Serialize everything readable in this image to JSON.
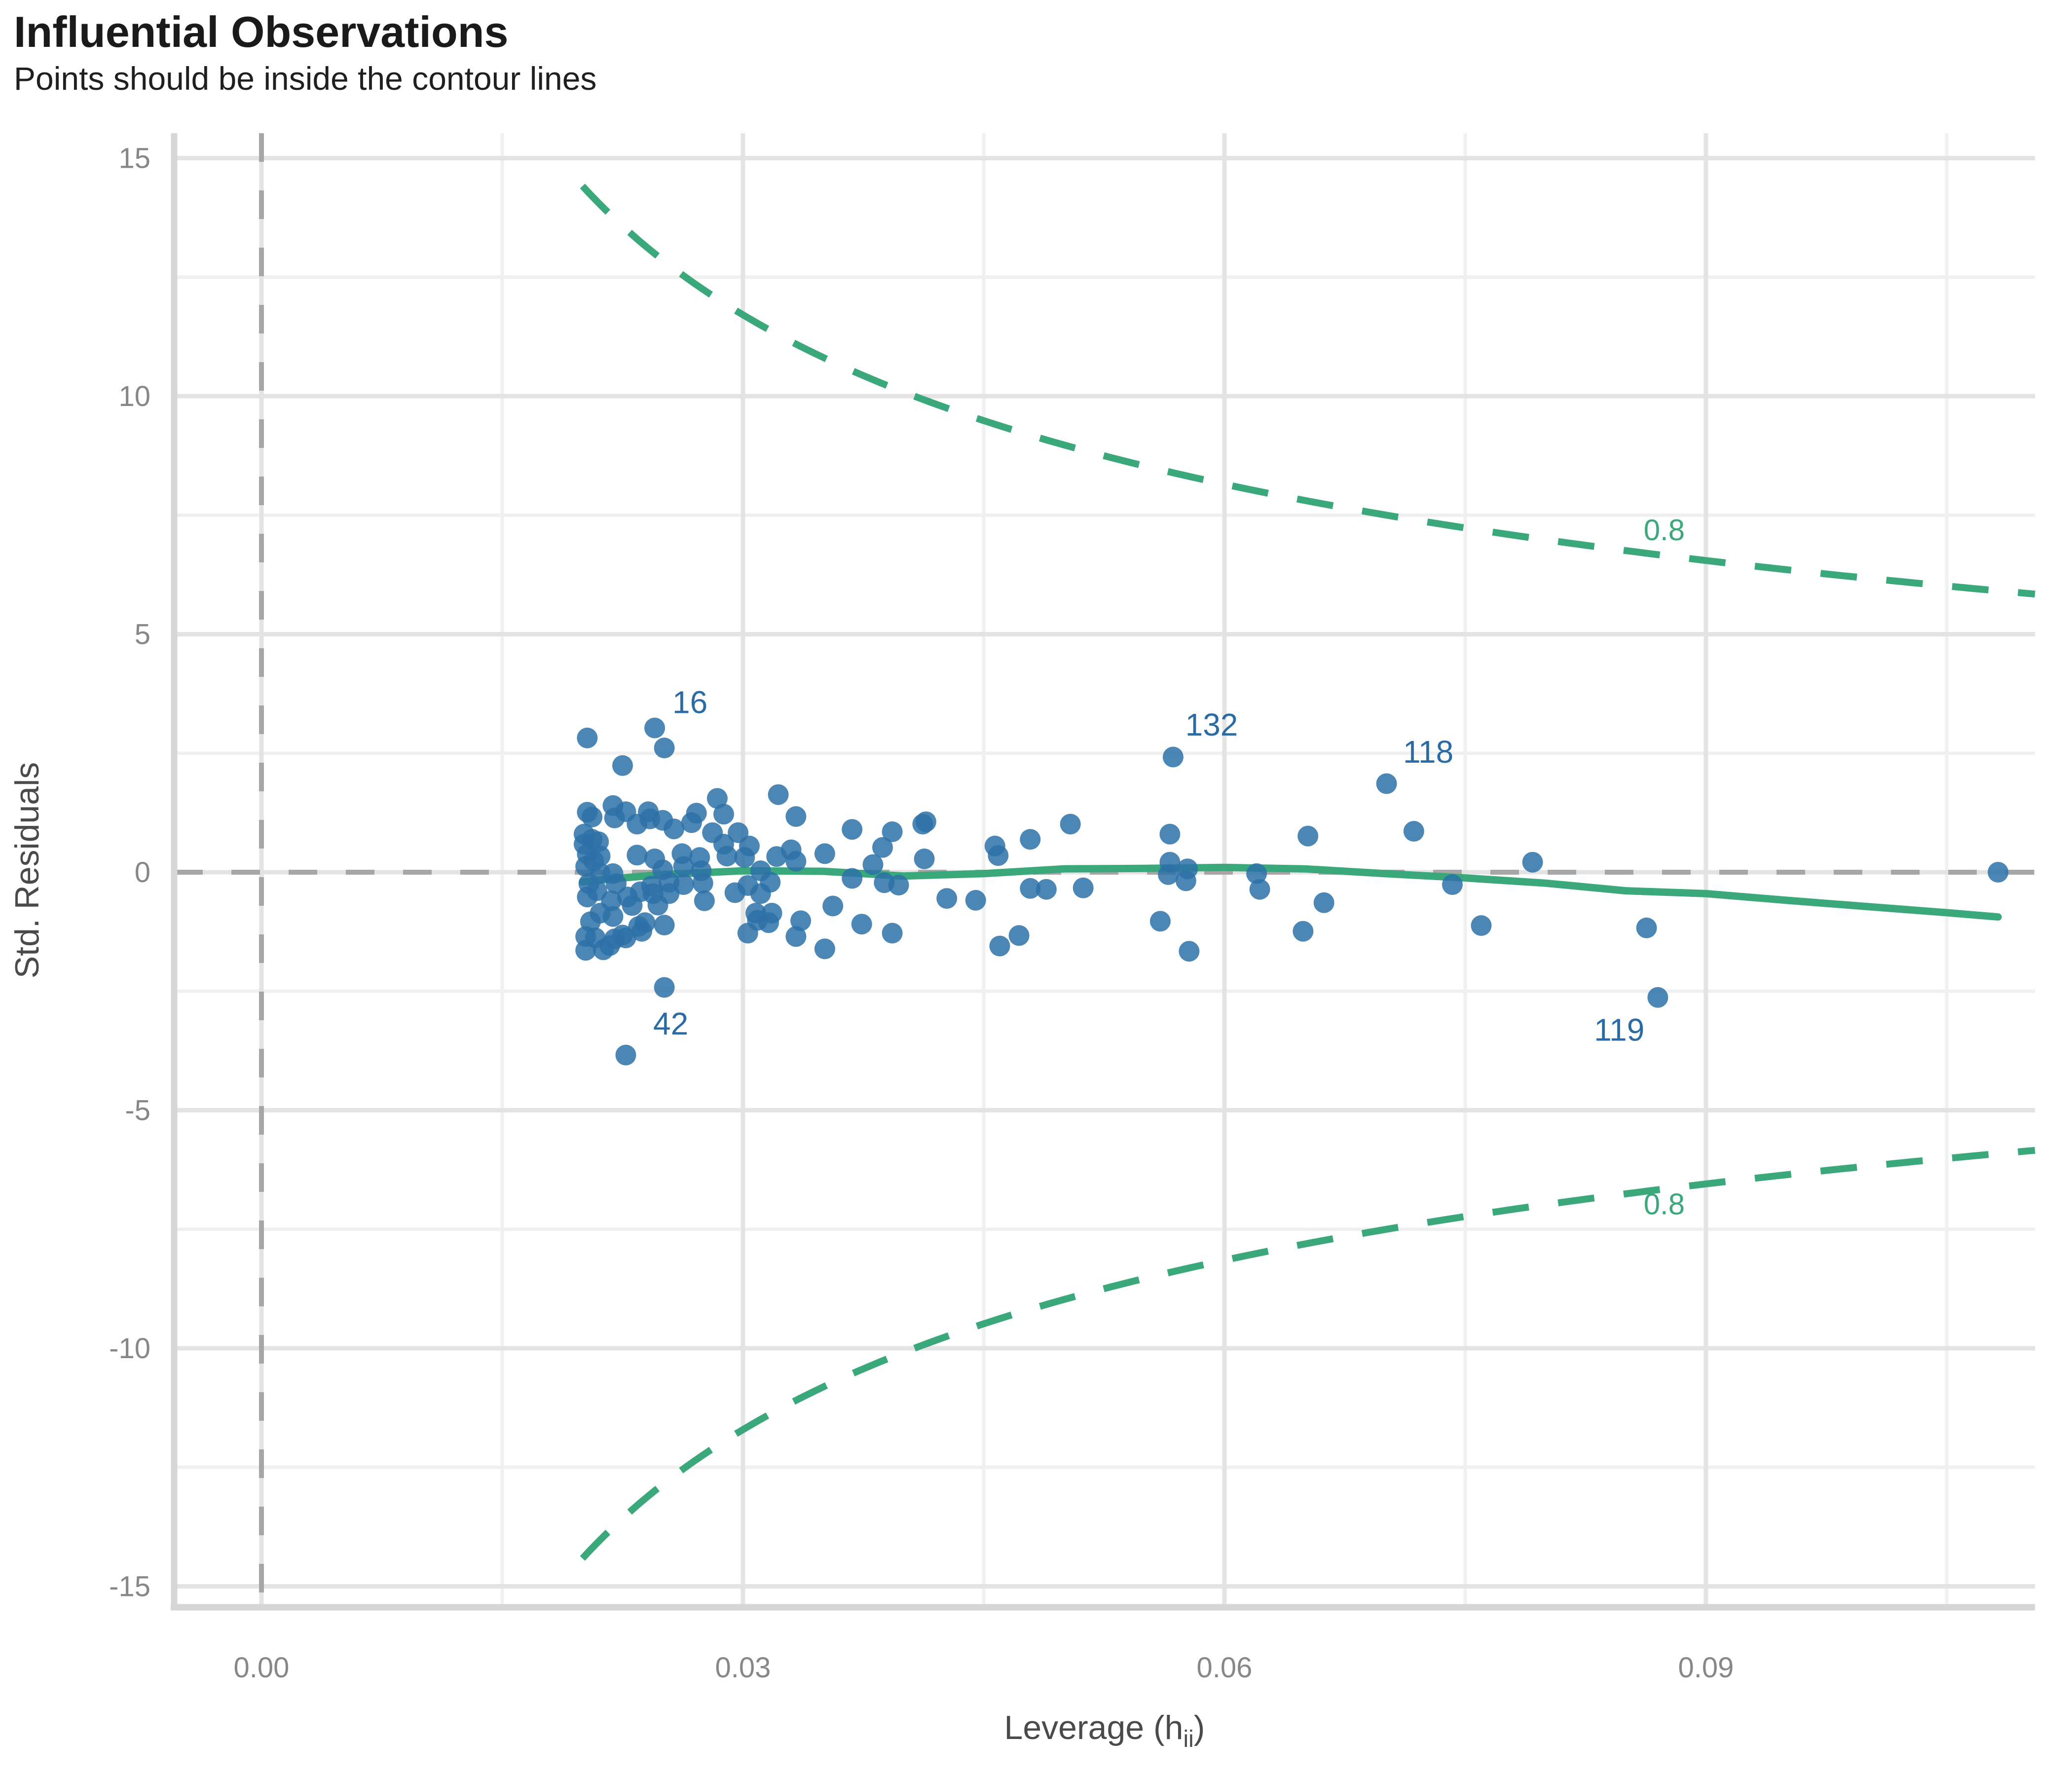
{
  "chart_data": {
    "type": "scatter",
    "title": "Influential Observations",
    "subtitle": "Points should be inside the contour lines",
    "xlabel": {
      "pre": "Leverage (h",
      "sub": "ii",
      "post": ")"
    },
    "ylabel": "Std. Residuals",
    "x_ticks": [
      {
        "v": 0.0,
        "label": "0.00"
      },
      {
        "v": 0.03,
        "label": "0.03"
      },
      {
        "v": 0.06,
        "label": "0.06"
      },
      {
        "v": 0.09,
        "label": "0.09"
      }
    ],
    "x_minor": [
      0.015,
      0.045,
      0.075,
      0.105
    ],
    "y_ticks": [
      {
        "v": 15,
        "label": "15"
      },
      {
        "v": 10,
        "label": "10"
      },
      {
        "v": 5,
        "label": "5"
      },
      {
        "v": 0,
        "label": "0"
      },
      {
        "v": -5,
        "label": "-5"
      },
      {
        "v": -10,
        "label": "-10"
      },
      {
        "v": -15,
        "label": "-15"
      }
    ],
    "y_minor": [
      12.5,
      7.5,
      2.5,
      -2.5,
      -7.5,
      -12.5
    ],
    "xlim": [
      -0.0055,
      0.1105
    ],
    "ylim": [
      -15.4,
      15.5
    ],
    "grid": true,
    "reference_lines": {
      "vertical_at_x": 0,
      "horizontal_at_y": 0,
      "style": "dashed"
    },
    "contour": {
      "cook_distance_level": 0.8,
      "label": "0.8",
      "formula": "residual = ±sqrt(k*(1-h)/h)",
      "k": 4.24,
      "h_start": 0.02,
      "h_end": 0.1105,
      "label_top": {
        "x": 0.0874,
        "y": 7.18
      },
      "label_bottom": {
        "x": 0.0874,
        "y": -6.98
      }
    },
    "smooth_line": [
      [
        0.02,
        -0.2
      ],
      [
        0.0225,
        -0.12
      ],
      [
        0.025,
        -0.05
      ],
      [
        0.03,
        0.03
      ],
      [
        0.035,
        0.02
      ],
      [
        0.04,
        -0.08
      ],
      [
        0.045,
        -0.03
      ],
      [
        0.05,
        0.07
      ],
      [
        0.055,
        0.08
      ],
      [
        0.06,
        0.1
      ],
      [
        0.065,
        0.07
      ],
      [
        0.07,
        -0.03
      ],
      [
        0.075,
        -0.12
      ],
      [
        0.08,
        -0.23
      ],
      [
        0.085,
        -0.39
      ],
      [
        0.09,
        -0.45
      ],
      [
        0.095,
        -0.59
      ],
      [
        0.1,
        -0.72
      ],
      [
        0.105,
        -0.85
      ],
      [
        0.1082,
        -0.94
      ]
    ],
    "points": [
      [
        0.0203,
        2.82
      ],
      [
        0.0245,
        3.03
      ],
      [
        0.0251,
        2.61
      ],
      [
        0.0225,
        2.24
      ],
      [
        0.0203,
        1.26
      ],
      [
        0.0206,
        1.16
      ],
      [
        0.0219,
        1.4
      ],
      [
        0.022,
        1.14
      ],
      [
        0.0227,
        1.27
      ],
      [
        0.0241,
        1.27
      ],
      [
        0.0242,
        1.12
      ],
      [
        0.025,
        1.09
      ],
      [
        0.0234,
        1.01
      ],
      [
        0.0268,
        1.04
      ],
      [
        0.0257,
        0.91
      ],
      [
        0.0271,
        1.24
      ],
      [
        0.0284,
        1.55
      ],
      [
        0.0288,
        1.22
      ],
      [
        0.0281,
        0.83
      ],
      [
        0.0297,
        0.83
      ],
      [
        0.0288,
        0.59
      ],
      [
        0.029,
        0.34
      ],
      [
        0.0301,
        0.31
      ],
      [
        0.0304,
        0.55
      ],
      [
        0.0322,
        1.63
      ],
      [
        0.0333,
        1.17
      ],
      [
        0.0201,
        0.8
      ],
      [
        0.0201,
        0.59
      ],
      [
        0.0206,
        0.69
      ],
      [
        0.021,
        0.64
      ],
      [
        0.0203,
        0.38
      ],
      [
        0.0207,
        0.24
      ],
      [
        0.0202,
        0.12
      ],
      [
        0.0211,
        0.34
      ],
      [
        0.0211,
        -0.02
      ],
      [
        0.0204,
        -0.24
      ],
      [
        0.0203,
        -0.52
      ],
      [
        0.0209,
        -0.39
      ],
      [
        0.0211,
        -0.86
      ],
      [
        0.0205,
        -1.04
      ],
      [
        0.0219,
        -0.03
      ],
      [
        0.0221,
        -0.24
      ],
      [
        0.0218,
        -0.6
      ],
      [
        0.0219,
        -0.93
      ],
      [
        0.0228,
        -0.52
      ],
      [
        0.0231,
        -0.7
      ],
      [
        0.0235,
        -1.14
      ],
      [
        0.0236,
        -0.41
      ],
      [
        0.0243,
        -0.29
      ],
      [
        0.0244,
        -0.45
      ],
      [
        0.0247,
        -0.69
      ],
      [
        0.0254,
        -0.21
      ],
      [
        0.0254,
        -0.45
      ],
      [
        0.0234,
        0.36
      ],
      [
        0.0245,
        0.28
      ],
      [
        0.025,
        0.05
      ],
      [
        0.0262,
        0.39
      ],
      [
        0.0263,
        0.12
      ],
      [
        0.0273,
        0.31
      ],
      [
        0.0274,
        0.03
      ],
      [
        0.0275,
        -0.23
      ],
      [
        0.0311,
        0.03
      ],
      [
        0.0317,
        -0.21
      ],
      [
        0.0321,
        0.33
      ],
      [
        0.033,
        0.47
      ],
      [
        0.0333,
        0.23
      ],
      [
        0.0276,
        -0.6
      ],
      [
        0.0263,
        -0.26
      ],
      [
        0.0303,
        -0.28
      ],
      [
        0.0295,
        -0.43
      ],
      [
        0.0311,
        -0.45
      ],
      [
        0.0308,
        -0.86
      ],
      [
        0.0318,
        -0.86
      ],
      [
        0.0336,
        -1.02
      ],
      [
        0.0309,
        -1.01
      ],
      [
        0.0316,
        -1.06
      ],
      [
        0.0239,
        -1.06
      ],
      [
        0.0251,
        -1.11
      ],
      [
        0.0202,
        -1.35
      ],
      [
        0.0208,
        -1.38
      ],
      [
        0.022,
        -1.4
      ],
      [
        0.0227,
        -1.38
      ],
      [
        0.0202,
        -1.64
      ],
      [
        0.0213,
        -1.63
      ],
      [
        0.0217,
        -1.54
      ],
      [
        0.0237,
        -1.24
      ],
      [
        0.0225,
        -1.32
      ],
      [
        0.0251,
        -2.42
      ],
      [
        0.0227,
        -3.84
      ],
      [
        0.0303,
        -1.28
      ],
      [
        0.0333,
        -1.35
      ],
      [
        0.0368,
        0.9
      ],
      [
        0.0393,
        0.85
      ],
      [
        0.0412,
        1.01
      ],
      [
        0.0414,
        1.06
      ],
      [
        0.0351,
        0.39
      ],
      [
        0.0387,
        0.52
      ],
      [
        0.0381,
        0.16
      ],
      [
        0.0413,
        0.28
      ],
      [
        0.0368,
        -0.13
      ],
      [
        0.0388,
        -0.22
      ],
      [
        0.0397,
        -0.27
      ],
      [
        0.0427,
        -0.55
      ],
      [
        0.0445,
        -0.59
      ],
      [
        0.0356,
        -0.71
      ],
      [
        0.0374,
        -1.09
      ],
      [
        0.0393,
        -1.28
      ],
      [
        0.0457,
        0.55
      ],
      [
        0.0459,
        0.35
      ],
      [
        0.0479,
        0.69
      ],
      [
        0.0479,
        -0.34
      ],
      [
        0.0489,
        -0.36
      ],
      [
        0.0472,
        -1.33
      ],
      [
        0.0351,
        -1.61
      ],
      [
        0.046,
        -1.55
      ],
      [
        0.0568,
        2.42
      ],
      [
        0.0504,
        1.01
      ],
      [
        0.0566,
        0.8
      ],
      [
        0.0566,
        0.21
      ],
      [
        0.0565,
        -0.05
      ],
      [
        0.0576,
        -0.18
      ],
      [
        0.0577,
        0.07
      ],
      [
        0.056,
        -1.03
      ],
      [
        0.0512,
        -0.33
      ],
      [
        0.062,
        -0.03
      ],
      [
        0.0622,
        -0.36
      ],
      [
        0.0652,
        0.76
      ],
      [
        0.0649,
        -1.24
      ],
      [
        0.0578,
        -1.66
      ],
      [
        0.0701,
        1.86
      ],
      [
        0.0718,
        0.86
      ],
      [
        0.0742,
        -0.26
      ],
      [
        0.0662,
        -0.64
      ],
      [
        0.0792,
        0.21
      ],
      [
        0.076,
        -1.12
      ],
      [
        0.0863,
        -1.17
      ],
      [
        0.087,
        -2.63
      ],
      [
        0.1082,
        0.0
      ]
    ],
    "outlier_labels": [
      {
        "label": "16",
        "x": 0.0267,
        "y": 3.57
      },
      {
        "label": "42",
        "x": 0.0255,
        "y": -3.18
      },
      {
        "label": "132",
        "x": 0.0592,
        "y": 3.1
      },
      {
        "label": "118",
        "x": 0.0727,
        "y": 2.53
      },
      {
        "label": "119",
        "x": 0.0846,
        "y": -3.31
      }
    ],
    "colors": {
      "point_fill": "#2d71a8",
      "point_alpha": 0.85,
      "green_line": "#3aa87a",
      "reference_dash": "#a6a6a6",
      "grid_major": "#e3e3e3",
      "grid_minor": "#f0f0f0",
      "axis_line": "#d6d6d6",
      "tick_text": "#878787",
      "axis_title_text": "#4a4a4a",
      "outlier_label_text": "#2a6ba6",
      "title_text": "#1a1a1a"
    },
    "legend": "none"
  }
}
